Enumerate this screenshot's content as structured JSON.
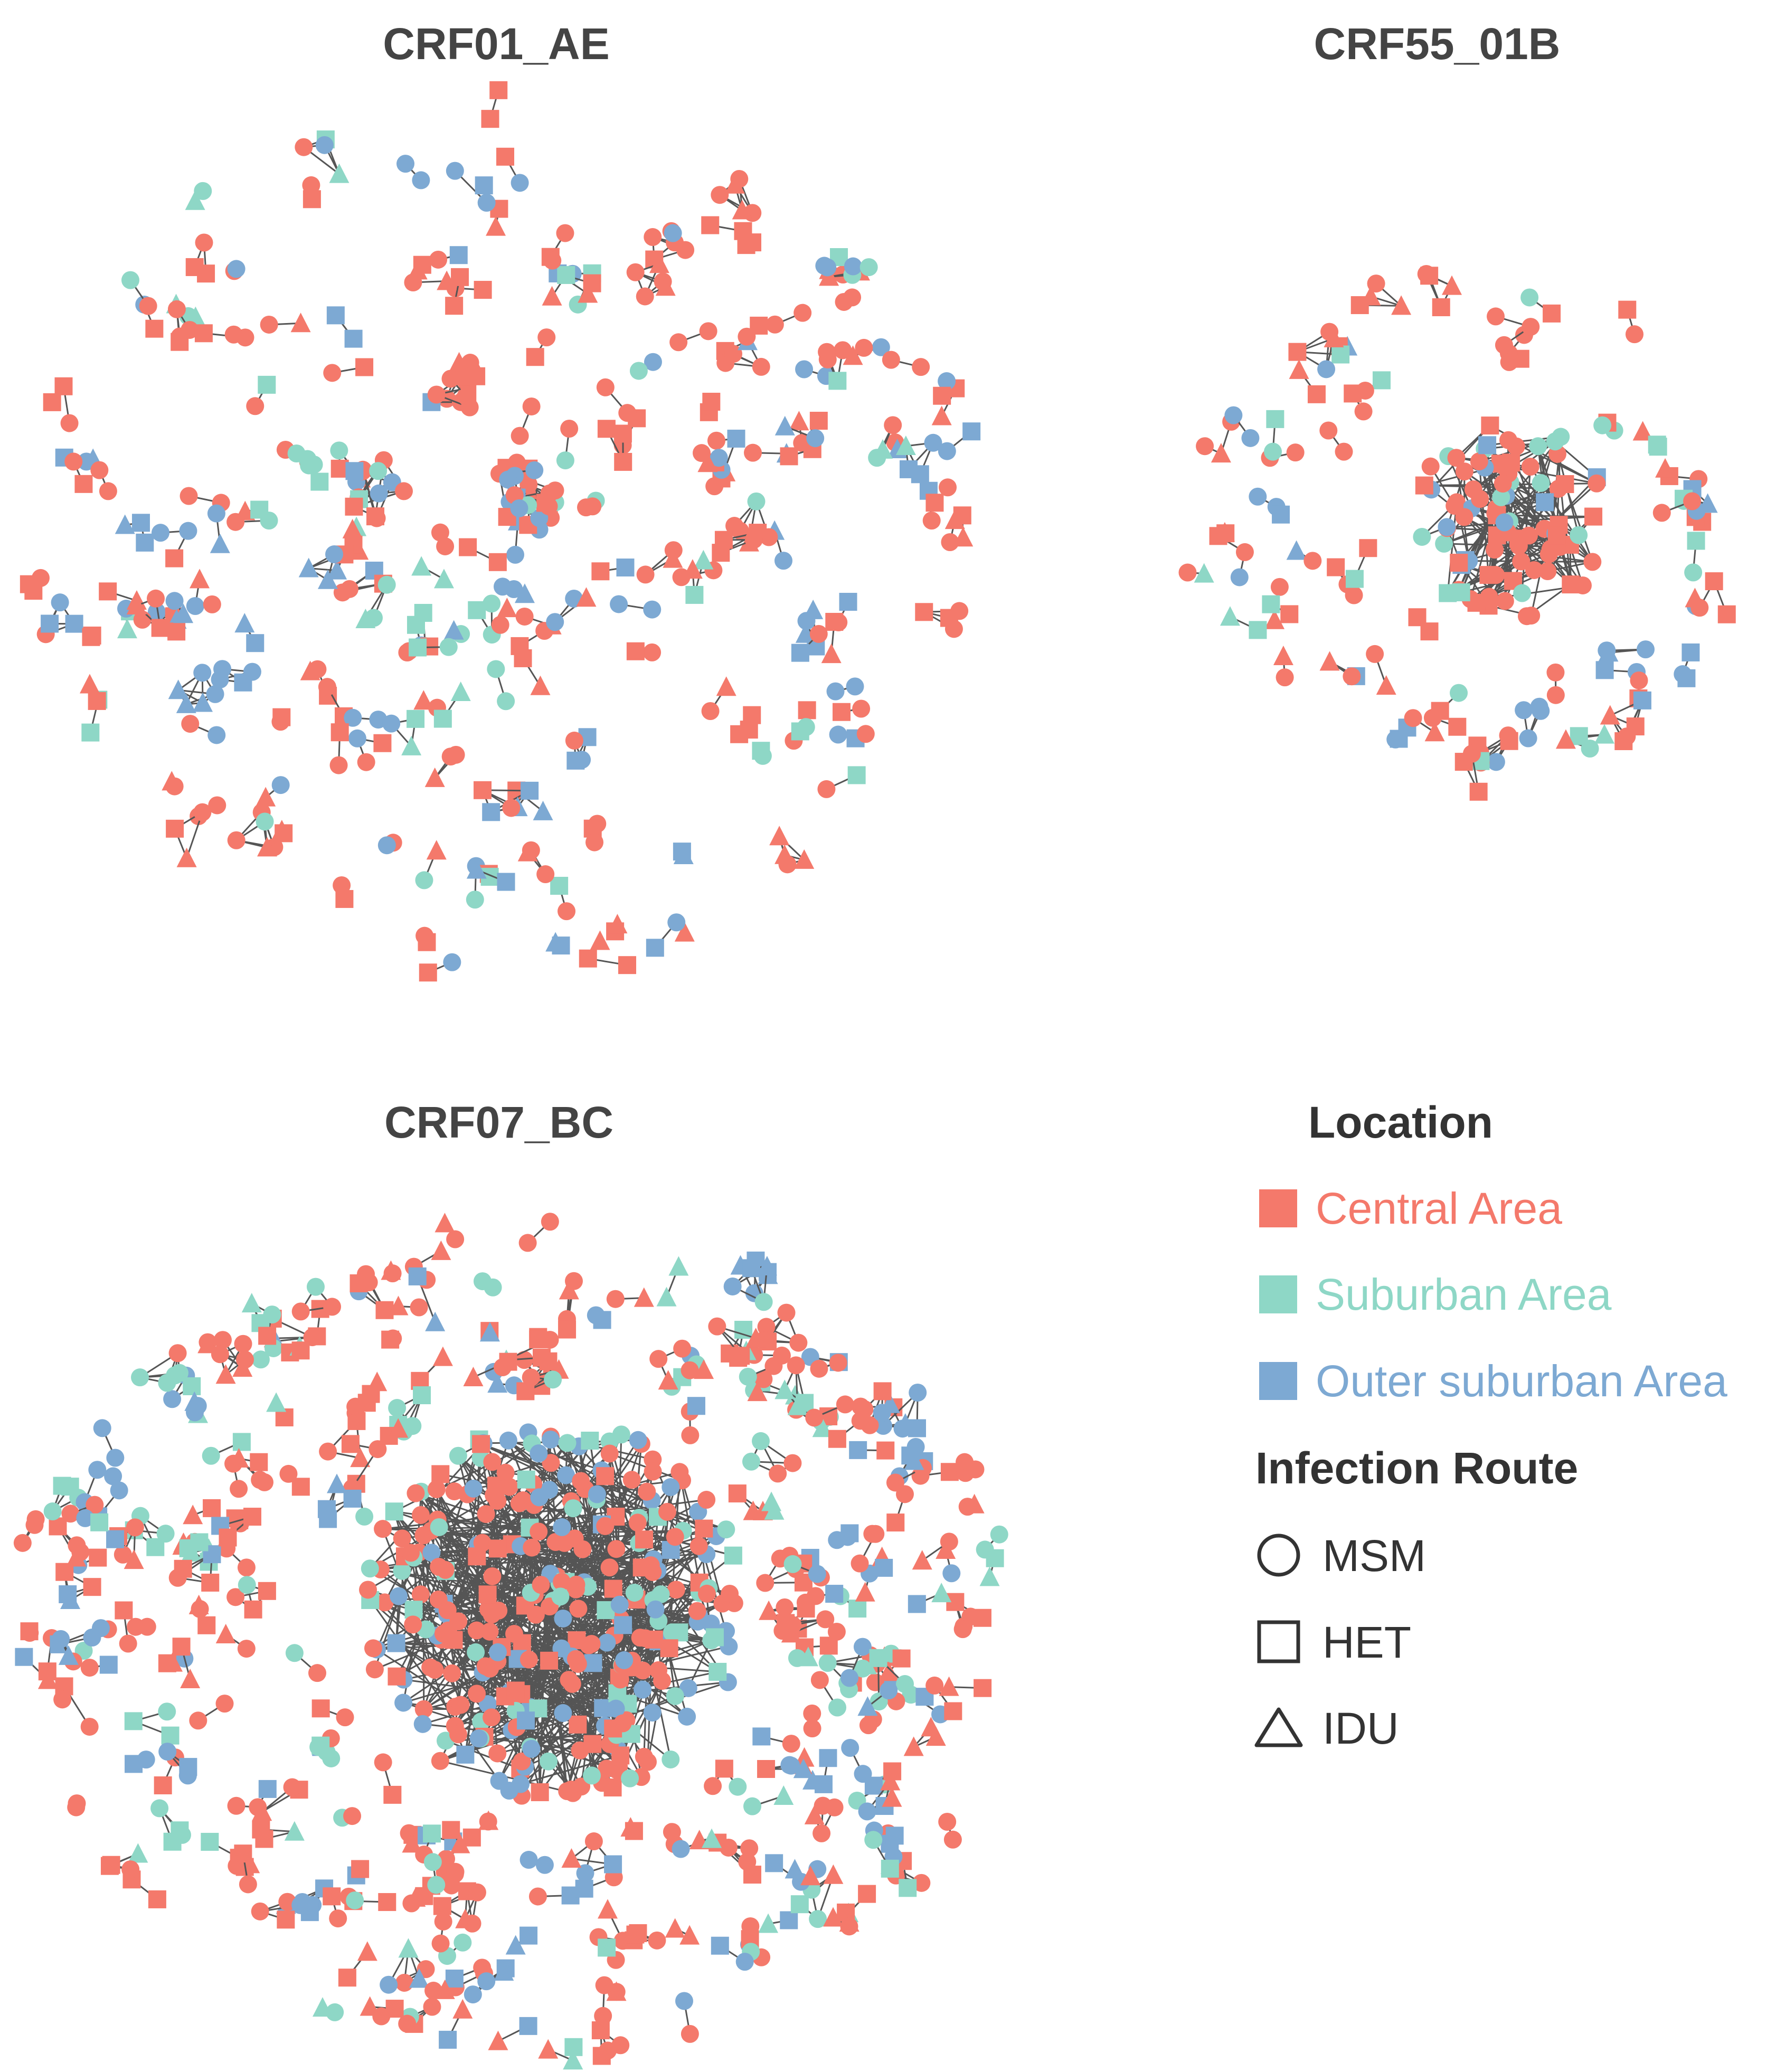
{
  "figure": {
    "type": "transmission-network",
    "panels": [
      {
        "id": "crf01",
        "title": "CRF01_AE"
      },
      {
        "id": "crf55",
        "title": "CRF55_01B"
      },
      {
        "id": "crf07",
        "title": "CRF07_BC"
      }
    ]
  },
  "legend": {
    "location_title": "Location",
    "locations": [
      {
        "key": "central",
        "label": "Central Area",
        "color": "#F4796B"
      },
      {
        "key": "suburban",
        "label": "Suburban Area",
        "color": "#8ED7C6"
      },
      {
        "key": "outer",
        "label": "Outer suburban Area",
        "color": "#7DA9D3"
      }
    ],
    "route_title": "Infection Route",
    "routes": [
      {
        "key": "msm",
        "label": "MSM",
        "shape": "circle"
      },
      {
        "key": "het",
        "label": "HET",
        "shape": "square"
      },
      {
        "key": "idu",
        "label": "IDU",
        "shape": "triangle"
      }
    ]
  },
  "colors": {
    "edge": "#555555",
    "title_text": "#444444"
  }
}
